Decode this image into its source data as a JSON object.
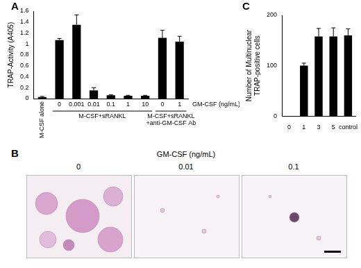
{
  "chart_data": [
    {
      "panel": "A",
      "type": "bar",
      "y_label": "TRAP-Activity (A405)",
      "x_label": "GM-CSF (ng/mL)",
      "categories": [
        "M-CSF alone",
        "0",
        "0.001",
        "0.01",
        "0.1",
        "1",
        "10",
        "0",
        "1"
      ],
      "group": [
        null,
        "M-CSF+sRANKL",
        "M-CSF+sRANKL",
        "M-CSF+sRANKL",
        "M-CSF+sRANKL",
        "M-CSF+sRANKL",
        "M-CSF+sRANKL",
        "M-CSF+sRANKL +anti-GM-CSF Ab",
        "M-CSF+sRANKL +anti-GM-CSF Ab"
      ],
      "values": [
        0.03,
        1.07,
        1.35,
        0.15,
        0.06,
        0.05,
        0.05,
        1.11,
        1.04
      ],
      "errors": [
        0.01,
        0.03,
        0.18,
        0.05,
        0.01,
        0.01,
        0.01,
        0.14,
        0.1
      ],
      "color": "#000000",
      "ylim": [
        0,
        1.6
      ],
      "yticks": [
        0,
        0.2,
        0.4,
        0.6,
        0.8,
        1,
        1.2,
        1.4,
        1.6
      ],
      "grid": false
    },
    {
      "panel": "C",
      "type": "bar",
      "y_label": [
        "Number of Multinuclear",
        "TRAP-positive cells"
      ],
      "categories": [
        "0",
        "1",
        "3",
        "5",
        "control"
      ],
      "values": [
        0,
        100,
        158,
        158,
        160
      ],
      "errors": [
        null,
        5,
        16,
        17,
        13
      ],
      "color": "#000000",
      "ylim": [
        0,
        200
      ],
      "yticks": [
        0,
        100,
        200
      ],
      "grid": false
    }
  ],
  "panel_b": {
    "panel": "B",
    "title": "GM-CSF (ng/mL)",
    "images": [
      "0",
      "0.01",
      "0.1"
    ]
  }
}
